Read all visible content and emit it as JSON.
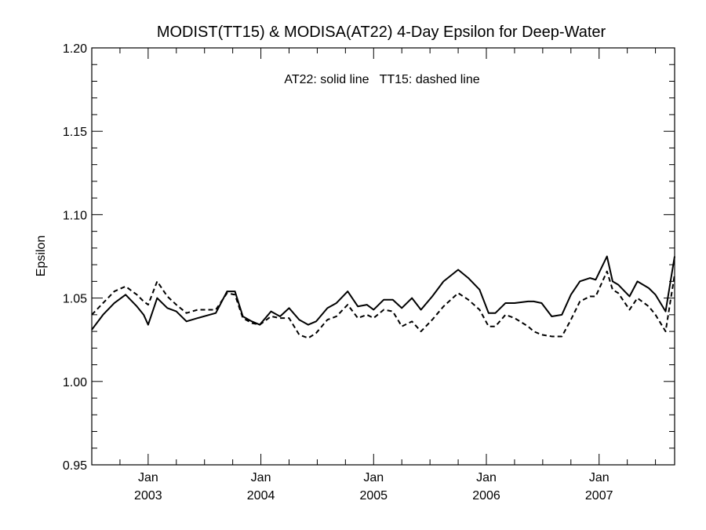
{
  "chart_data": {
    "type": "line",
    "title": "MODIST(TT15) & MODISA(AT22) 4-Day Epsilon for Deep-Water",
    "annotation": "AT22: solid line   TT15: dashed line",
    "xlabel": "",
    "ylabel": "Epsilon",
    "ylim": [
      0.95,
      1.2
    ],
    "xlim": [
      2002.5,
      2007.67
    ],
    "y_ticks": [
      "0.95",
      "1.00",
      "1.05",
      "1.10",
      "1.15",
      "1.20"
    ],
    "x_ticks": [
      {
        "x": 2003.0,
        "month": "Jan",
        "year": "2003"
      },
      {
        "x": 2004.0,
        "month": "Jan",
        "year": "2004"
      },
      {
        "x": 2005.0,
        "month": "Jan",
        "year": "2005"
      },
      {
        "x": 2006.0,
        "month": "Jan",
        "year": "2006"
      },
      {
        "x": 2007.0,
        "month": "Jan",
        "year": "2007"
      }
    ],
    "grid": false,
    "series": [
      {
        "name": "AT22",
        "style": "solid",
        "color": "#000000",
        "points": [
          [
            2002.5,
            1.031
          ],
          [
            2002.6,
            1.04
          ],
          [
            2002.7,
            1.047
          ],
          [
            2002.8,
            1.052
          ],
          [
            2002.9,
            1.045
          ],
          [
            2002.96,
            1.04
          ],
          [
            2003.0,
            1.034
          ],
          [
            2003.08,
            1.05
          ],
          [
            2003.17,
            1.044
          ],
          [
            2003.25,
            1.042
          ],
          [
            2003.34,
            1.036
          ],
          [
            2003.44,
            1.038
          ],
          [
            2003.6,
            1.041
          ],
          [
            2003.7,
            1.054
          ],
          [
            2003.77,
            1.054
          ],
          [
            2003.84,
            1.039
          ],
          [
            2003.92,
            1.036
          ],
          [
            2003.99,
            1.034
          ],
          [
            2004.09,
            1.042
          ],
          [
            2004.17,
            1.039
          ],
          [
            2004.25,
            1.044
          ],
          [
            2004.34,
            1.037
          ],
          [
            2004.42,
            1.034
          ],
          [
            2004.49,
            1.036
          ],
          [
            2004.59,
            1.044
          ],
          [
            2004.67,
            1.047
          ],
          [
            2004.77,
            1.054
          ],
          [
            2004.86,
            1.045
          ],
          [
            2004.94,
            1.046
          ],
          [
            2005.0,
            1.043
          ],
          [
            2005.09,
            1.049
          ],
          [
            2005.17,
            1.049
          ],
          [
            2005.25,
            1.044
          ],
          [
            2005.34,
            1.05
          ],
          [
            2005.42,
            1.043
          ],
          [
            2005.52,
            1.051
          ],
          [
            2005.62,
            1.06
          ],
          [
            2005.75,
            1.067
          ],
          [
            2005.84,
            1.062
          ],
          [
            2005.94,
            1.055
          ],
          [
            2006.02,
            1.041
          ],
          [
            2006.08,
            1.041
          ],
          [
            2006.17,
            1.047
          ],
          [
            2006.25,
            1.047
          ],
          [
            2006.37,
            1.048
          ],
          [
            2006.42,
            1.048
          ],
          [
            2006.49,
            1.047
          ],
          [
            2006.58,
            1.039
          ],
          [
            2006.67,
            1.04
          ],
          [
            2006.75,
            1.052
          ],
          [
            2006.83,
            1.06
          ],
          [
            2006.92,
            1.062
          ],
          [
            2006.97,
            1.061
          ],
          [
            2007.07,
            1.075
          ],
          [
            2007.12,
            1.06
          ],
          [
            2007.17,
            1.058
          ],
          [
            2007.27,
            1.051
          ],
          [
            2007.34,
            1.06
          ],
          [
            2007.44,
            1.056
          ],
          [
            2007.5,
            1.052
          ],
          [
            2007.59,
            1.042
          ],
          [
            2007.67,
            1.075
          ]
        ]
      },
      {
        "name": "TT15",
        "style": "dashed",
        "color": "#000000",
        "points": [
          [
            2002.5,
            1.04
          ],
          [
            2002.6,
            1.047
          ],
          [
            2002.7,
            1.054
          ],
          [
            2002.8,
            1.057
          ],
          [
            2002.9,
            1.052
          ],
          [
            2002.96,
            1.048
          ],
          [
            2003.0,
            1.046
          ],
          [
            2003.08,
            1.06
          ],
          [
            2003.17,
            1.051
          ],
          [
            2003.25,
            1.046
          ],
          [
            2003.34,
            1.041
          ],
          [
            2003.44,
            1.043
          ],
          [
            2003.6,
            1.043
          ],
          [
            2003.7,
            1.053
          ],
          [
            2003.77,
            1.052
          ],
          [
            2003.84,
            1.038
          ],
          [
            2003.92,
            1.035
          ],
          [
            2003.99,
            1.034
          ],
          [
            2004.09,
            1.039
          ],
          [
            2004.17,
            1.038
          ],
          [
            2004.25,
            1.038
          ],
          [
            2004.34,
            1.028
          ],
          [
            2004.42,
            1.026
          ],
          [
            2004.49,
            1.029
          ],
          [
            2004.59,
            1.037
          ],
          [
            2004.67,
            1.039
          ],
          [
            2004.77,
            1.046
          ],
          [
            2004.86,
            1.038
          ],
          [
            2004.94,
            1.04
          ],
          [
            2005.0,
            1.038
          ],
          [
            2005.09,
            1.043
          ],
          [
            2005.17,
            1.042
          ],
          [
            2005.25,
            1.033
          ],
          [
            2005.34,
            1.036
          ],
          [
            2005.42,
            1.03
          ],
          [
            2005.52,
            1.037
          ],
          [
            2005.62,
            1.045
          ],
          [
            2005.75,
            1.053
          ],
          [
            2005.84,
            1.049
          ],
          [
            2005.94,
            1.043
          ],
          [
            2006.02,
            1.033
          ],
          [
            2006.08,
            1.033
          ],
          [
            2006.17,
            1.04
          ],
          [
            2006.25,
            1.038
          ],
          [
            2006.37,
            1.033
          ],
          [
            2006.42,
            1.03
          ],
          [
            2006.49,
            1.028
          ],
          [
            2006.58,
            1.027
          ],
          [
            2006.67,
            1.027
          ],
          [
            2006.75,
            1.037
          ],
          [
            2006.83,
            1.048
          ],
          [
            2006.92,
            1.051
          ],
          [
            2006.97,
            1.051
          ],
          [
            2007.07,
            1.066
          ],
          [
            2007.12,
            1.055
          ],
          [
            2007.17,
            1.053
          ],
          [
            2007.27,
            1.043
          ],
          [
            2007.34,
            1.05
          ],
          [
            2007.44,
            1.045
          ],
          [
            2007.5,
            1.04
          ],
          [
            2007.59,
            1.03
          ],
          [
            2007.67,
            1.064
          ]
        ]
      }
    ]
  }
}
